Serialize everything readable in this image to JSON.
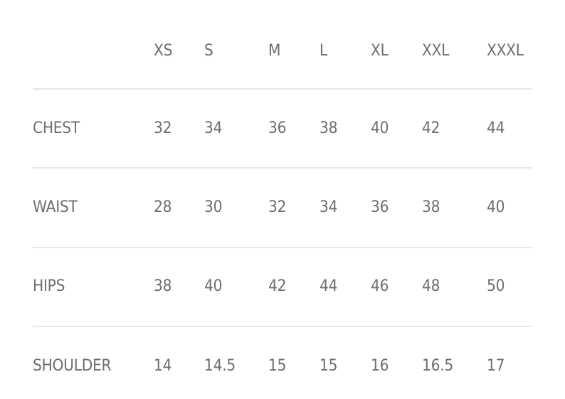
{
  "size_chart": {
    "sizes": [
      "XS",
      "S",
      "M",
      "L",
      "XL",
      "XXL",
      "XXXL"
    ],
    "rows": [
      {
        "label": "CHEST",
        "values": [
          "32",
          "34",
          "36",
          "38",
          "40",
          "42",
          "44"
        ]
      },
      {
        "label": "WAIST",
        "values": [
          "28",
          "30",
          "32",
          "34",
          "36",
          "38",
          "40"
        ]
      },
      {
        "label": "HIPS",
        "values": [
          "38",
          "40",
          "42",
          "44",
          "46",
          "48",
          "50"
        ]
      },
      {
        "label": "SHOULDER",
        "values": [
          "14",
          "14.5",
          "15",
          "15",
          "16",
          "16.5",
          "17"
        ]
      }
    ]
  },
  "colors": {
    "text": "#6e6e6e",
    "divider": "#e6e6e6"
  }
}
